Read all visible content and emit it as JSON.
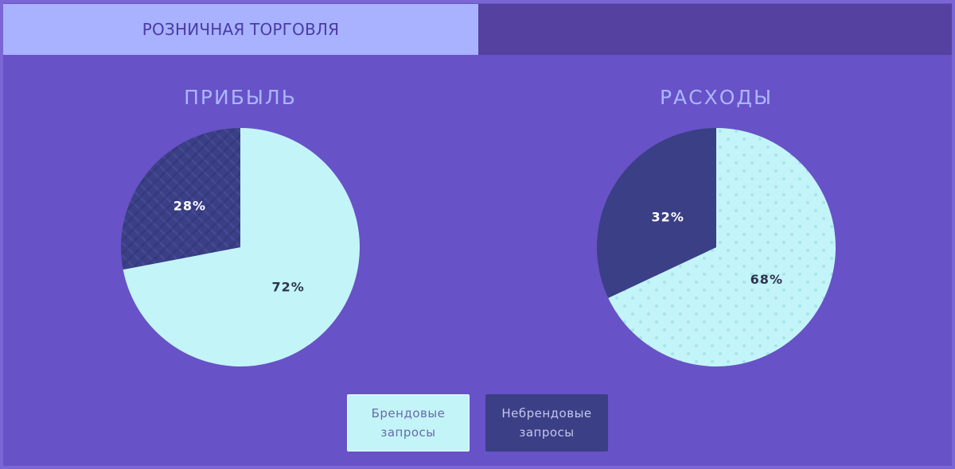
{
  "tabs": [
    {
      "label": "РОЗНИЧНАЯ ТОРГОВЛЯ",
      "active": true
    },
    {
      "label": "",
      "active": false
    }
  ],
  "colors": {
    "brand": "#c3f5f8",
    "nonbrand": "#3b3f86",
    "background": "#6852c7",
    "title": "#a9b6ff"
  },
  "legend": [
    {
      "label": "Брендовые запросы",
      "series": "brand"
    },
    {
      "label": "Небрендовые запросы",
      "series": "nonbrand"
    }
  ],
  "chart_data": [
    {
      "type": "pie",
      "title": "ПРИБЫЛЬ",
      "slices": [
        {
          "name": "Брендовые запросы",
          "value": 72,
          "label": "72%"
        },
        {
          "name": "Небрендовые запросы",
          "value": 28,
          "label": "28%"
        }
      ],
      "pattern_nonbrand": "diamond-plate"
    },
    {
      "type": "pie",
      "title": "РАСХОДЫ",
      "slices": [
        {
          "name": "Брендовые запросы",
          "value": 68,
          "label": "68%"
        },
        {
          "name": "Небрендовые запросы",
          "value": 32,
          "label": "32%"
        }
      ],
      "pattern_brand": "dots"
    }
  ]
}
